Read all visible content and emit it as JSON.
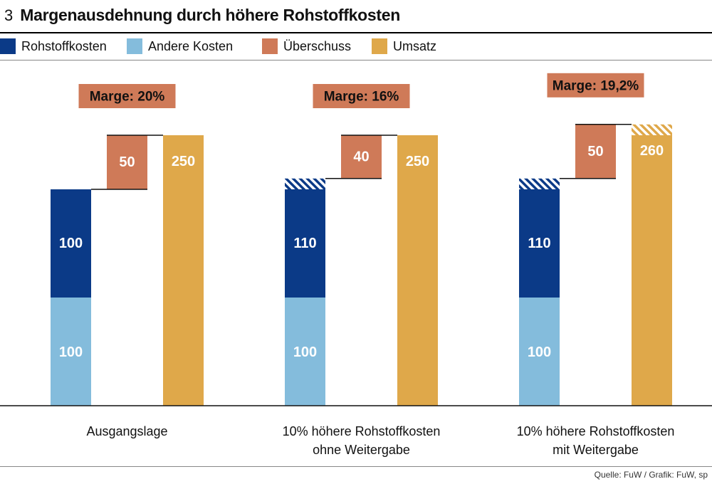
{
  "header": {
    "number": "3",
    "title": "Margenausdehnung durch höhere Rohstoffkosten"
  },
  "legend": [
    {
      "label": "Rohstoffkosten",
      "color": "#0b3a87"
    },
    {
      "label": "Andere Kosten",
      "color": "#84bcdc"
    },
    {
      "label": "Überschuss",
      "color": "#cf7a58"
    },
    {
      "label": "Umsatz",
      "color": "#dfa84a"
    }
  ],
  "colors": {
    "rohstoff": "#0b3a87",
    "andere": "#84bcdc",
    "ueberschuss": "#cf7a58",
    "umsatz": "#dfa84a"
  },
  "chart_data": {
    "type": "bar",
    "title": "Margenausdehnung durch höhere Rohstoffkosten",
    "series": [
      {
        "name": "Andere Kosten",
        "values": [
          100,
          100,
          100
        ]
      },
      {
        "name": "Rohstoffkosten",
        "values": [
          100,
          110,
          110
        ]
      },
      {
        "name": "Überschuss",
        "values": [
          50,
          40,
          50
        ]
      },
      {
        "name": "Umsatz",
        "values": [
          250,
          250,
          260
        ]
      }
    ],
    "groups": [
      {
        "label_lines": [
          "Ausgangslage"
        ],
        "andere": 100,
        "rohstoff": 100,
        "ueberschuss": 50,
        "umsatz": 250,
        "marge": "Marge: 20%",
        "cost_increase": false,
        "revenue_increase": false
      },
      {
        "label_lines": [
          "10% höhere Rohstoffkosten",
          "ohne Weitergabe"
        ],
        "andere": 100,
        "rohstoff": 110,
        "ueberschuss": 40,
        "umsatz": 250,
        "marge": "Marge: 16%",
        "cost_increase": true,
        "revenue_increase": false
      },
      {
        "label_lines": [
          "10% höhere Rohstoffkosten",
          "mit Weitergabe"
        ],
        "andere": 100,
        "rohstoff": 110,
        "ueberschuss": 50,
        "umsatz": 260,
        "marge": "Marge: 19,2%",
        "cost_increase": true,
        "revenue_increase": true
      }
    ],
    "ylim": [
      0,
      260
    ]
  },
  "source": "Quelle: FuW / Grafik: FuW, sp"
}
